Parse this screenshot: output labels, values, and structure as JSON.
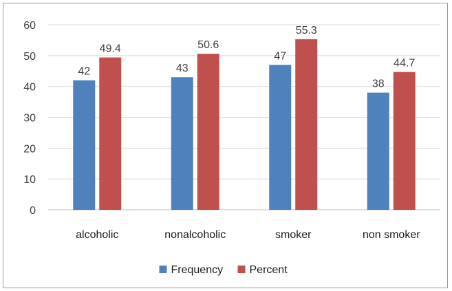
{
  "chart_data": {
    "type": "bar",
    "categories": [
      "alcoholic",
      "nonalcoholic",
      "smoker",
      "non smoker"
    ],
    "series": [
      {
        "name": "Frequency",
        "values": [
          42,
          43,
          47,
          38
        ],
        "labels": [
          "42",
          "43",
          "47",
          "38"
        ],
        "color": "#4f81bd"
      },
      {
        "name": "Percent",
        "values": [
          49.4,
          50.6,
          55.3,
          44.7
        ],
        "labels": [
          "49.4",
          "50.6",
          "55.3",
          "44.7"
        ],
        "color": "#c0504d"
      }
    ],
    "ylim": [
      0,
      60
    ],
    "yticks": [
      "0",
      "10",
      "20",
      "30",
      "40",
      "50",
      "60"
    ],
    "grid": true,
    "legend_position": "bottom"
  }
}
